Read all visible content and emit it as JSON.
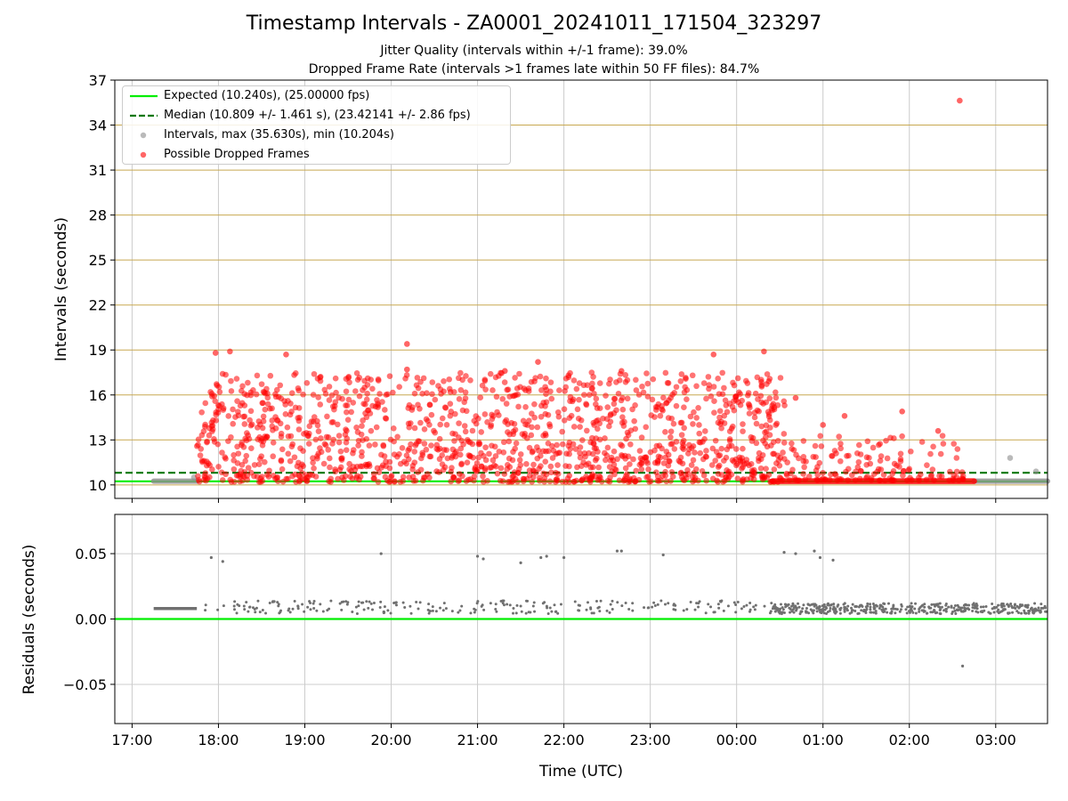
{
  "title": "Timestamp Intervals - ZA0001_20241011_171504_323297",
  "subtitle_jitter": "Jitter Quality (intervals within +/-1 frame): 39.0%",
  "subtitle_dropped": "Dropped Frame Rate (intervals >1 frames late within 50 FF files): 84.7%",
  "colors": {
    "expected": "#00ee00",
    "median": "#007700",
    "intervals": "#8c8c8c",
    "dropped": "#ff0000",
    "residuals": "#707070",
    "hgrid": "#c8a850",
    "vgrid": "#cccccc"
  },
  "legend": {
    "expected": "Expected (10.240s), (25.00000 fps)",
    "median": "Median (10.809 +/- 1.461 s), (23.42141 +/- 2.86 fps)",
    "intervals": "Intervals, max (35.630s), min (10.204s)",
    "dropped": "Possible Dropped Frames"
  },
  "chart_data": [
    {
      "type": "scatter",
      "panel": "intervals",
      "xlabel": "",
      "ylabel": "Intervals (seconds)",
      "xlim": [
        "2024-10-11 16:48",
        "2024-10-12 03:36"
      ],
      "ylim": [
        9.1,
        37
      ],
      "yticks": [
        10,
        13,
        16,
        19,
        22,
        25,
        28,
        31,
        34,
        37
      ],
      "ytick_labels": [
        "10",
        "13",
        "16",
        "19",
        "22",
        "25",
        "28",
        "31",
        "34",
        "37"
      ],
      "grid": "both",
      "legend_position": "top-left",
      "expected_interval": 10.24,
      "median_interval": 10.809,
      "expected_fps": 25.0,
      "median_fps": 23.42141,
      "interval_max": 35.63,
      "interval_min": 10.204,
      "intervals_uniform_segments": [
        {
          "from": "2024-10-11 17:15",
          "to": "2024-10-11 17:45",
          "y": 10.25
        },
        {
          "from": "2024-10-12 02:45",
          "to": "2024-10-12 03:36",
          "y": 10.25
        }
      ],
      "intervals_points": [
        {
          "x": "2024-10-12 03:10",
          "y": 11.8
        },
        {
          "x": "2024-10-12 03:28",
          "y": 10.9
        },
        {
          "x": "2024-10-11 17:43",
          "y": 10.5
        }
      ],
      "dropped_band": {
        "from": "2024-10-12 00:25",
        "to": "2024-10-12 02:45",
        "y": 10.25
      },
      "dropped_points": [
        {
          "x": "2024-10-12 02:35",
          "y": 35.63
        },
        {
          "x": "2024-10-11 20:11",
          "y": 19.4
        },
        {
          "x": "2024-10-12 00:19",
          "y": 18.9
        },
        {
          "x": "2024-10-11 18:08",
          "y": 18.9
        },
        {
          "x": "2024-10-11 17:58",
          "y": 18.8
        },
        {
          "x": "2024-10-11 18:47",
          "y": 18.7
        },
        {
          "x": "2024-10-11 23:44",
          "y": 18.7
        },
        {
          "x": "2024-10-11 20:11",
          "y": 17.7
        },
        {
          "x": "2024-10-11 22:40",
          "y": 17.6
        },
        {
          "x": "2024-10-11 21:19",
          "y": 17.6
        },
        {
          "x": "2024-10-11 21:42",
          "y": 18.2
        },
        {
          "x": "2024-10-12 00:41",
          "y": 15.8
        },
        {
          "x": "2024-10-12 01:15",
          "y": 14.6
        },
        {
          "x": "2024-10-12 01:55",
          "y": 14.9
        },
        {
          "x": "2024-10-12 02:20",
          "y": 13.6
        },
        {
          "x": "2024-10-12 01:00",
          "y": 14.0
        }
      ],
      "dropped_clusters": [
        {
          "from": "2024-10-11 17:45",
          "to": "2024-10-12 00:35",
          "y_min": 10.2,
          "y_max": 17.5,
          "count": 1400
        },
        {
          "from": "2024-10-12 00:35",
          "to": "2024-10-12 02:40",
          "y_min": 10.3,
          "y_max": 13.3,
          "count": 150
        }
      ]
    },
    {
      "type": "scatter",
      "panel": "residuals",
      "xlabel": "Time (UTC)",
      "ylabel": "Residuals (seconds)",
      "xlim": [
        "2024-10-11 16:48",
        "2024-10-12 03:36"
      ],
      "ylim": [
        -0.08,
        0.08
      ],
      "yticks": [
        -0.05,
        0,
        0.05
      ],
      "ytick_labels": [
        "−0.05",
        "0.00",
        "0.05"
      ],
      "xticks": [
        "2024-10-11 17:00",
        "2024-10-11 18:00",
        "2024-10-11 19:00",
        "2024-10-11 20:00",
        "2024-10-11 21:00",
        "2024-10-11 22:00",
        "2024-10-11 23:00",
        "2024-10-12 00:00",
        "2024-10-12 01:00",
        "2024-10-12 02:00",
        "2024-10-12 03:00"
      ],
      "xtick_labels": [
        "17:00",
        "18:00",
        "19:00",
        "20:00",
        "21:00",
        "22:00",
        "23:00",
        "00:00",
        "01:00",
        "02:00",
        "03:00"
      ],
      "grid": "both",
      "zero_line": 0,
      "residual_band": {
        "from": "2024-10-11 17:15",
        "to": "2024-10-11 17:45",
        "y": 0.008
      },
      "residual_band_late": {
        "from": "2024-10-12 00:25",
        "to": "2024-10-12 03:36",
        "y_min": 0.004,
        "y_max": 0.012,
        "count": 420
      },
      "residual_outliers": [
        {
          "x": "2024-10-11 17:55",
          "y": 0.047
        },
        {
          "x": "2024-10-11 18:03",
          "y": 0.044
        },
        {
          "x": "2024-10-11 19:53",
          "y": 0.05
        },
        {
          "x": "2024-10-11 21:00",
          "y": 0.048
        },
        {
          "x": "2024-10-11 21:04",
          "y": 0.046
        },
        {
          "x": "2024-10-11 21:30",
          "y": 0.043
        },
        {
          "x": "2024-10-11 21:44",
          "y": 0.047
        },
        {
          "x": "2024-10-11 21:48",
          "y": 0.048
        },
        {
          "x": "2024-10-11 22:00",
          "y": 0.047
        },
        {
          "x": "2024-10-11 22:37",
          "y": 0.052
        },
        {
          "x": "2024-10-11 22:40",
          "y": 0.052
        },
        {
          "x": "2024-10-11 23:09",
          "y": 0.049
        },
        {
          "x": "2024-10-12 00:33",
          "y": 0.051
        },
        {
          "x": "2024-10-12 00:41",
          "y": 0.05
        },
        {
          "x": "2024-10-12 00:54",
          "y": 0.052
        },
        {
          "x": "2024-10-12 00:58",
          "y": 0.047
        },
        {
          "x": "2024-10-12 01:07",
          "y": 0.045
        },
        {
          "x": "2024-10-12 02:37",
          "y": -0.036
        }
      ],
      "residual_sparse": {
        "from": "2024-10-11 17:50",
        "to": "2024-10-12 00:25",
        "y_min": 0.004,
        "y_max": 0.014,
        "count": 240
      }
    }
  ]
}
